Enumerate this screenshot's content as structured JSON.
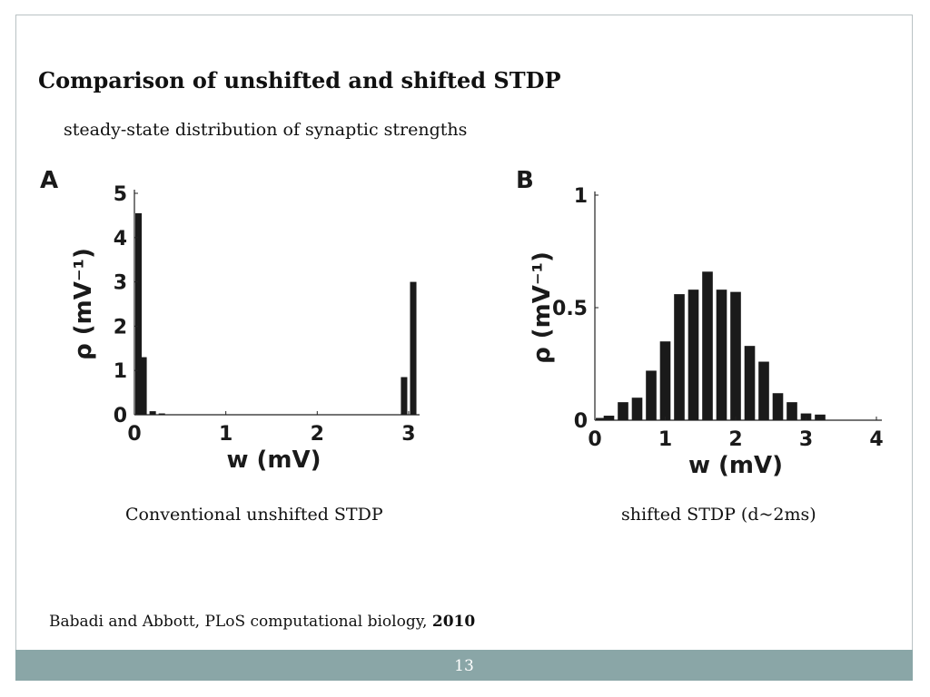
{
  "slide": {
    "title": "Comparison of unshifted and shifted STDP",
    "subtitle": "steady-state distribution of synaptic strengths",
    "caption_a": "Conventional unshifted STDP",
    "caption_b": "shifted STDP (d~2ms)",
    "citation_text": "Babadi and Abbott, PLoS computational biology, ",
    "citation_year": "2010",
    "page_number": "13"
  },
  "chart_data": [
    {
      "type": "bar",
      "panel": "A",
      "xlabel": "w (mV)",
      "ylabel": "ρ (mV⁻¹)",
      "xlim": [
        0,
        3.05
      ],
      "ylim": [
        0,
        5
      ],
      "xticks": [
        "0",
        "1",
        "2",
        "3"
      ],
      "yticks": [
        "0",
        "1",
        "2",
        "3",
        "4",
        "5"
      ],
      "bar_width": 0.07,
      "x": [
        0.0,
        0.1,
        0.2,
        0.3,
        2.95,
        3.05
      ],
      "values": [
        4.55,
        1.3,
        0.08,
        0.03,
        0.85,
        3.0
      ],
      "color": "#1a1a1a"
    },
    {
      "type": "bar",
      "panel": "B",
      "xlabel": "w (mV)",
      "ylabel": "ρ (mV⁻¹)",
      "xlim": [
        0,
        4
      ],
      "ylim": [
        0,
        1
      ],
      "xticks": [
        "0",
        "1",
        "2",
        "3",
        "4"
      ],
      "yticks": [
        "0",
        "0.5",
        "1"
      ],
      "bar_width": 0.15,
      "x": [
        0.0,
        0.2,
        0.4,
        0.6,
        0.8,
        1.0,
        1.2,
        1.4,
        1.6,
        1.8,
        2.0,
        2.2,
        2.4,
        2.6,
        2.8,
        3.0,
        3.2
      ],
      "values": [
        0.01,
        0.02,
        0.08,
        0.1,
        0.22,
        0.35,
        0.56,
        0.58,
        0.66,
        0.58,
        0.57,
        0.33,
        0.26,
        0.12,
        0.08,
        0.03,
        0.025
      ],
      "color": "#1a1a1a"
    }
  ]
}
